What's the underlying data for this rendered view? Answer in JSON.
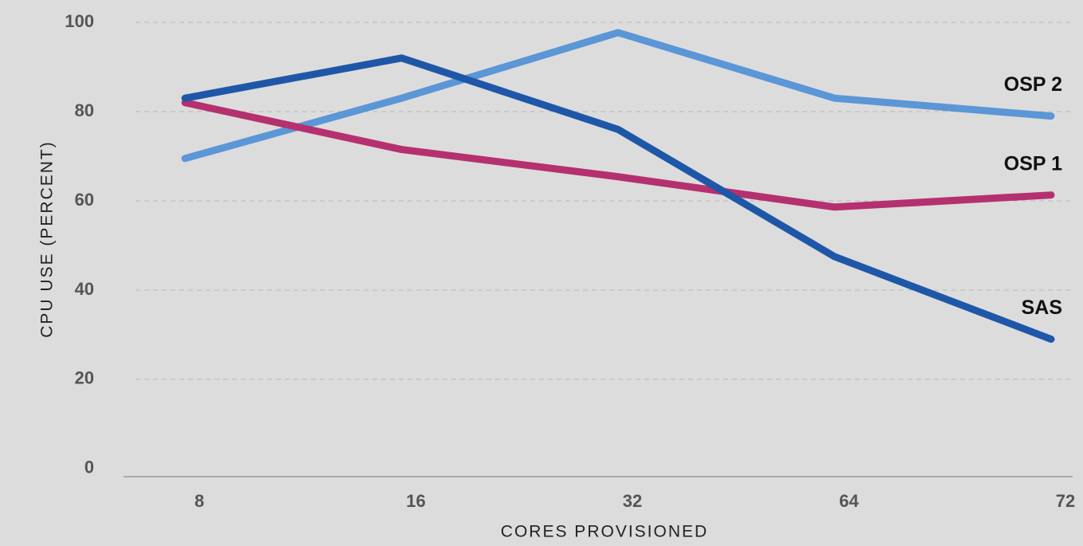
{
  "chart_data": {
    "type": "line",
    "x_label": "CORES PROVISIONED",
    "y_label": "CPU USE (PERCENT)",
    "categories": [
      "8",
      "16",
      "32",
      "64",
      "72"
    ],
    "series": [
      {
        "name": "OSP 2",
        "color": "#5b96d6",
        "values": [
          69.5,
          83,
          97.7,
          83,
          79
        ]
      },
      {
        "name": "OSP 1",
        "color": "#b5306f",
        "values": [
          82,
          71.5,
          65.4,
          58.6,
          61.3
        ]
      },
      {
        "name": "SAS",
        "color": "#1f57a8",
        "values": [
          83,
          92,
          76,
          47.5,
          29
        ]
      }
    ],
    "ylim": [
      -1.8,
      105
    ],
    "yticks": [
      0,
      20,
      40,
      60,
      80,
      100
    ],
    "grid": true
  }
}
